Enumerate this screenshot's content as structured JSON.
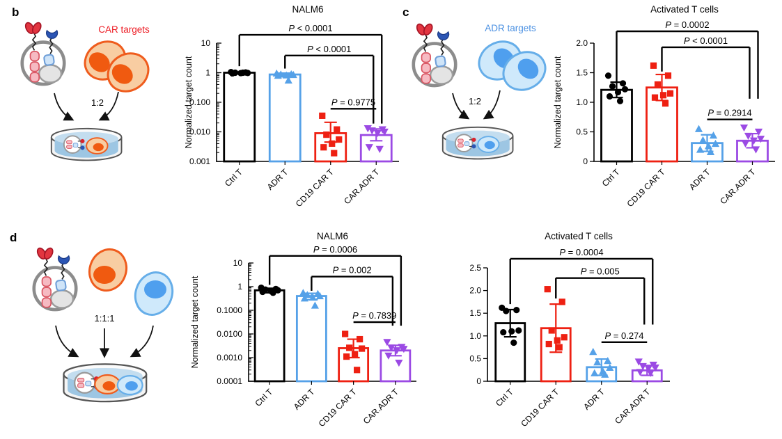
{
  "figure": {
    "panels": [
      {
        "id": "b",
        "label": "b",
        "diagram": {
          "target_label": "CAR targets",
          "ratio_label": "1:2"
        }
      },
      {
        "id": "c",
        "label": "c",
        "diagram": {
          "target_label": "ADR targets",
          "ratio_label": "1:2"
        }
      },
      {
        "id": "d",
        "label": "d",
        "diagram": {
          "ratio_label": "1:1:1"
        }
      }
    ]
  },
  "colors": {
    "series_black": "#000000",
    "series_blue": "#55a1e8",
    "series_red": "#ee2012",
    "series_purple": "#9b4ae4",
    "car_targets_label": "#ed1c24",
    "adr_targets_label": "#4a90e2"
  },
  "chart_data": [
    {
      "type": "bar",
      "panel": "b",
      "title": "NALM6",
      "ylabel": "Normalized target count",
      "yscale": "log",
      "ylim": [
        0.001,
        10
      ],
      "grid": false,
      "yticks": [
        {
          "v": 10,
          "label": "10"
        },
        {
          "v": 1,
          "label": "1"
        },
        {
          "v": 0.1,
          "label": "0.100"
        },
        {
          "v": 0.01,
          "label": "0.010"
        },
        {
          "v": 0.001,
          "label": "0.001"
        }
      ],
      "categories": [
        "Ctrl T",
        "ADR T",
        "CD19 CAR T",
        "CAR.ADR T"
      ],
      "colors": [
        "#000000",
        "#55a1e8",
        "#ee2012",
        "#9b4ae4"
      ],
      "markers": [
        "circle",
        "triangle-up",
        "square",
        "triangle-down"
      ],
      "means": [
        1.0,
        0.87,
        0.009,
        0.0078
      ],
      "err_hi": [
        1.06,
        0.97,
        0.021,
        0.0125
      ],
      "err_lo": [
        0.94,
        0.77,
        0.0045,
        0.005
      ],
      "points": [
        [
          1.05,
          1.02,
          1.0,
          0.98,
          0.97,
          0.95,
          1.0
        ],
        [
          0.95,
          0.9,
          0.88,
          0.85,
          0.82,
          0.8,
          0.55
        ],
        [
          0.035,
          0.012,
          0.008,
          0.0055,
          0.004,
          0.003,
          0.0019
        ],
        [
          0.013,
          0.012,
          0.011,
          0.01,
          0.009,
          0.003,
          0.0026
        ]
      ],
      "significance": [
        {
          "a": 0,
          "b": 3,
          "label": "P < 0.0001",
          "line": -0.07,
          "legA": 0.195,
          "legB": 0.68,
          "offB": 8
        },
        {
          "a": 1,
          "b": 3,
          "label": "P < 0.0001",
          "line": 0.105,
          "legA": 0.215,
          "legB": 0.68,
          "offB": -4
        },
        {
          "a": 2,
          "b": 3,
          "label": "P = 0.9775",
          "line": 0.555
        }
      ]
    },
    {
      "type": "bar",
      "panel": "c",
      "title": "Activated T cells",
      "ylabel": "Normalized target count",
      "yscale": "linear",
      "ylim": [
        0,
        2.0
      ],
      "grid": false,
      "yticks": [
        {
          "v": 2.0,
          "label": "2.0"
        },
        {
          "v": 1.5,
          "label": "1.5"
        },
        {
          "v": 1.0,
          "label": "1.0"
        },
        {
          "v": 0.5,
          "label": "0.5"
        },
        {
          "v": 0,
          "label": "0"
        }
      ],
      "categories": [
        "Ctrl T",
        "CD19 CAR T",
        "ADR T",
        "CAR.ADR T"
      ],
      "colors": [
        "#000000",
        "#ee2012",
        "#55a1e8",
        "#9b4ae4"
      ],
      "markers": [
        "circle",
        "square",
        "triangle-up",
        "triangle-down"
      ],
      "means": [
        1.21,
        1.25,
        0.31,
        0.35
      ],
      "err_hi": [
        1.34,
        1.47,
        0.45,
        0.47
      ],
      "err_lo": [
        1.08,
        1.03,
        0.17,
        0.23
      ],
      "points": [
        [
          1.45,
          1.32,
          1.27,
          1.22,
          1.17,
          1.1,
          1.02
        ],
        [
          1.62,
          1.45,
          1.3,
          1.15,
          1.12,
          1.08,
          0.98
        ],
        [
          0.55,
          0.44,
          0.36,
          0.3,
          0.26,
          0.2,
          0.16
        ],
        [
          0.57,
          0.5,
          0.43,
          0.38,
          0.35,
          0.3,
          0.2
        ]
      ],
      "significance": [
        {
          "a": 0,
          "b": 3,
          "label": "P = 0.0002",
          "line": -0.1,
          "legA": 0.33,
          "legB": 0.47,
          "offB": 8
        },
        {
          "a": 1,
          "b": 3,
          "label": "P < 0.0001",
          "line": 0.035,
          "legA": 0.24,
          "legB": 0.47,
          "offB": -4
        },
        {
          "a": 2,
          "b": 3,
          "label": "P = 0.2914",
          "line": 0.645
        }
      ]
    },
    {
      "type": "bar",
      "panel": "d",
      "title": "NALM6",
      "ylabel": "Normalized target count",
      "yscale": "log",
      "ylim": [
        0.0001,
        10
      ],
      "grid": false,
      "yticks": [
        {
          "v": 10,
          "label": "10"
        },
        {
          "v": 1,
          "label": "1"
        },
        {
          "v": 0.1,
          "label": "0.1000"
        },
        {
          "v": 0.01,
          "label": "0.0100"
        },
        {
          "v": 0.001,
          "label": "0.0010"
        },
        {
          "v": 0.0001,
          "label": "0.0001"
        }
      ],
      "categories": [
        "Ctrl T",
        "ADR T",
        "CD19 CAR T",
        "CAR.ADR T"
      ],
      "colors": [
        "#000000",
        "#55a1e8",
        "#ee2012",
        "#9b4ae4"
      ],
      "markers": [
        "circle",
        "triangle-up",
        "square",
        "triangle-down"
      ],
      "means": [
        0.7,
        0.4,
        0.0025,
        0.002
      ],
      "err_hi": [
        0.85,
        0.52,
        0.006,
        0.0033
      ],
      "err_lo": [
        0.55,
        0.28,
        0.001,
        0.0012
      ],
      "points": [
        [
          0.9,
          0.8,
          0.75,
          0.7,
          0.65,
          0.6,
          0.55
        ],
        [
          0.55,
          0.5,
          0.45,
          0.4,
          0.35,
          0.32,
          0.16
        ],
        [
          0.01,
          0.006,
          0.0026,
          0.0024,
          0.0014,
          0.0011,
          0.0003
        ],
        [
          0.0045,
          0.0028,
          0.0026,
          0.0023,
          0.002,
          0.0012,
          0.0006
        ]
      ],
      "significance": [
        {
          "a": 0,
          "b": 3,
          "label": "P = 0.0006",
          "line": -0.06,
          "legA": 0.185,
          "legB": 0.53,
          "offB": 8
        },
        {
          "a": 1,
          "b": 3,
          "label": "P = 0.002",
          "line": 0.115,
          "legA": 0.235,
          "legB": 0.53,
          "offB": -4
        },
        {
          "a": 2,
          "b": 3,
          "label": "P = 0.7839",
          "line": 0.5
        }
      ]
    },
    {
      "type": "bar",
      "panel": "d",
      "title": "Activated T cells",
      "ylabel": "",
      "yscale": "linear",
      "ylim": [
        0,
        2.5
      ],
      "grid": false,
      "yticks": [
        {
          "v": 2.5,
          "label": "2.5"
        },
        {
          "v": 2.0,
          "label": "2.0"
        },
        {
          "v": 1.5,
          "label": "1.5"
        },
        {
          "v": 1.0,
          "label": "1.0"
        },
        {
          "v": 0.5,
          "label": "0.5"
        },
        {
          "v": 0,
          "label": "0"
        }
      ],
      "categories": [
        "Ctrl T",
        "CD19 CAR T",
        "ADR T",
        "CAR.ADR T"
      ],
      "colors": [
        "#000000",
        "#ee2012",
        "#55a1e8",
        "#9b4ae4"
      ],
      "markers": [
        "circle",
        "square",
        "triangle-up",
        "triangle-down"
      ],
      "means": [
        1.28,
        1.17,
        0.31,
        0.24
      ],
      "err_hi": [
        1.58,
        1.7,
        0.49,
        0.35
      ],
      "err_lo": [
        0.98,
        0.64,
        0.13,
        0.13
      ],
      "points": [
        [
          1.62,
          1.57,
          1.55,
          1.12,
          1.1,
          1.08,
          0.85
        ],
        [
          2.03,
          1.75,
          1.12,
          0.97,
          0.9,
          0.82,
          0.75
        ],
        [
          0.65,
          0.45,
          0.42,
          0.3,
          0.22,
          0.18,
          0.15
        ],
        [
          0.43,
          0.36,
          0.33,
          0.3,
          0.28,
          0.2,
          0.18
        ]
      ],
      "significance": [
        {
          "a": 0,
          "b": 3,
          "label": "P = 0.0004",
          "line": -0.08,
          "legA": 0.32,
          "legB": 0.5,
          "offB": 8
        },
        {
          "a": 1,
          "b": 3,
          "label": "P = 0.005",
          "line": 0.09,
          "legA": 0.27,
          "legB": 0.5,
          "offB": -4
        },
        {
          "a": 2,
          "b": 3,
          "label": "P = 0.274",
          "line": 0.655
        }
      ]
    }
  ]
}
